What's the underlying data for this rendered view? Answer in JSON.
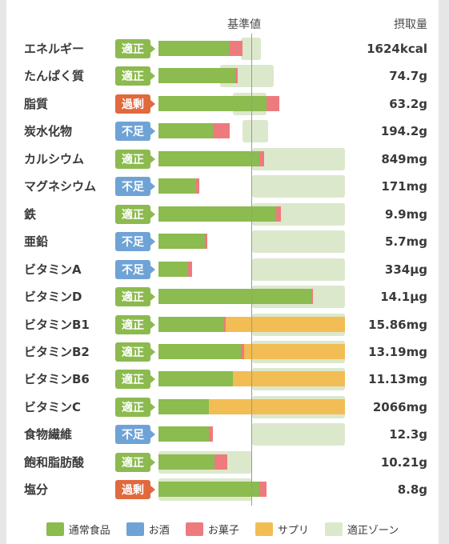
{
  "header": {
    "standard_label": "基準値",
    "intake_label": "摂取量"
  },
  "colors": {
    "food": "#8cbb4f",
    "alcohol": "#6fa3d6",
    "snacks": "#ed7b7e",
    "supplement": "#f2bd55",
    "zone": "#dce8cc",
    "status_ok": "#8cba4f",
    "status_low": "#6fa3d6",
    "status_over": "#e0693d"
  },
  "rows": [
    {
      "name": "エネルギー",
      "status": "適正",
      "status_type": "ok",
      "value": "1624kcal",
      "food": 0.38,
      "alcohol": 0,
      "snacks": 0.07,
      "supplement": 0,
      "zone": [
        0.44,
        0.55
      ]
    },
    {
      "name": "たんぱく質",
      "status": "適正",
      "status_type": "ok",
      "value": "74.7g",
      "food": 0.41,
      "alcohol": 0,
      "snacks": 0.015,
      "supplement": 0,
      "zone": [
        0.33,
        0.62
      ]
    },
    {
      "name": "脂質",
      "status": "過剰",
      "status_type": "over",
      "value": "63.2g",
      "food": 0.58,
      "alcohol": 0,
      "snacks": 0.07,
      "supplement": 0,
      "zone": [
        0.4,
        0.58
      ]
    },
    {
      "name": "炭水化物",
      "status": "不足",
      "status_type": "low",
      "value": "194.2g",
      "food": 0.29,
      "alcohol": 0,
      "snacks": 0.09,
      "supplement": 0,
      "zone": [
        0.45,
        0.59
      ]
    },
    {
      "name": "カルシウム",
      "status": "適正",
      "status_type": "ok",
      "value": "849mg",
      "food": 0.54,
      "alcohol": 0,
      "snacks": 0.025,
      "supplement": 0,
      "zone": [
        0.5,
        1.0
      ]
    },
    {
      "name": "マグネシウム",
      "status": "不足",
      "status_type": "low",
      "value": "171mg",
      "food": 0.2,
      "alcohol": 0,
      "snacks": 0.02,
      "supplement": 0,
      "zone": [
        0.5,
        1.0
      ]
    },
    {
      "name": "鉄",
      "status": "適正",
      "status_type": "ok",
      "value": "9.9mg",
      "food": 0.63,
      "alcohol": 0,
      "snacks": 0.025,
      "supplement": 0,
      "zone": [
        0.5,
        1.0
      ]
    },
    {
      "name": "亜鉛",
      "status": "不足",
      "status_type": "low",
      "value": "5.7mg",
      "food": 0.25,
      "alcohol": 0,
      "snacks": 0.01,
      "supplement": 0,
      "zone": [
        0.5,
        1.0
      ]
    },
    {
      "name": "ビタミンA",
      "status": "不足",
      "status_type": "low",
      "value": "334µg",
      "food": 0.16,
      "alcohol": 0,
      "snacks": 0.02,
      "supplement": 0,
      "zone": [
        0.5,
        1.0
      ]
    },
    {
      "name": "ビタミンD",
      "status": "適正",
      "status_type": "ok",
      "value": "14.1µg",
      "food": 0.82,
      "alcohol": 0,
      "snacks": 0.01,
      "supplement": 0,
      "zone": [
        0.5,
        1.0
      ]
    },
    {
      "name": "ビタミンB1",
      "status": "適正",
      "status_type": "ok",
      "value": "15.86mg",
      "food": 0.35,
      "alcohol": 0,
      "snacks": 0.01,
      "supplement": 0.64,
      "zone": [
        0.5,
        1.0
      ]
    },
    {
      "name": "ビタミンB2",
      "status": "適正",
      "status_type": "ok",
      "value": "13.19mg",
      "food": 0.44,
      "alcohol": 0,
      "snacks": 0.02,
      "supplement": 0.54,
      "zone": [
        0.5,
        1.0
      ]
    },
    {
      "name": "ビタミンB6",
      "status": "適正",
      "status_type": "ok",
      "value": "11.13mg",
      "food": 0.4,
      "alcohol": 0,
      "snacks": 0,
      "supplement": 0.6,
      "zone": [
        0.5,
        1.0
      ]
    },
    {
      "name": "ビタミンC",
      "status": "適正",
      "status_type": "ok",
      "value": "2066mg",
      "food": 0.27,
      "alcohol": 0,
      "snacks": 0,
      "supplement": 0.73,
      "zone": [
        0.5,
        1.0
      ]
    },
    {
      "name": "食物繊維",
      "status": "不足",
      "status_type": "low",
      "value": "12.3g",
      "food": 0.27,
      "alcohol": 0,
      "snacks": 0.02,
      "supplement": 0,
      "zone": [
        0.5,
        1.0
      ]
    },
    {
      "name": "飽和脂肪酸",
      "status": "適正",
      "status_type": "ok",
      "value": "10.21g",
      "food": 0.3,
      "alcohol": 0,
      "snacks": 0.07,
      "supplement": 0,
      "zone": [
        0.0,
        0.5
      ]
    },
    {
      "name": "塩分",
      "status": "過剰",
      "status_type": "over",
      "value": "8.8g",
      "food": 0.54,
      "alcohol": 0,
      "snacks": 0.04,
      "supplement": 0,
      "zone": [
        0.0,
        0.5
      ]
    }
  ],
  "legend": [
    {
      "key": "food",
      "label": "通常食品",
      "color": "#8cbb4f"
    },
    {
      "key": "alcohol",
      "label": "お酒",
      "color": "#6fa3d6"
    },
    {
      "key": "snacks",
      "label": "お菓子",
      "color": "#ed7b7e"
    },
    {
      "key": "supplement",
      "label": "サプリ",
      "color": "#f2bd55"
    },
    {
      "key": "zone",
      "label": "適正ゾーン",
      "color": "#dce8cc"
    }
  ]
}
